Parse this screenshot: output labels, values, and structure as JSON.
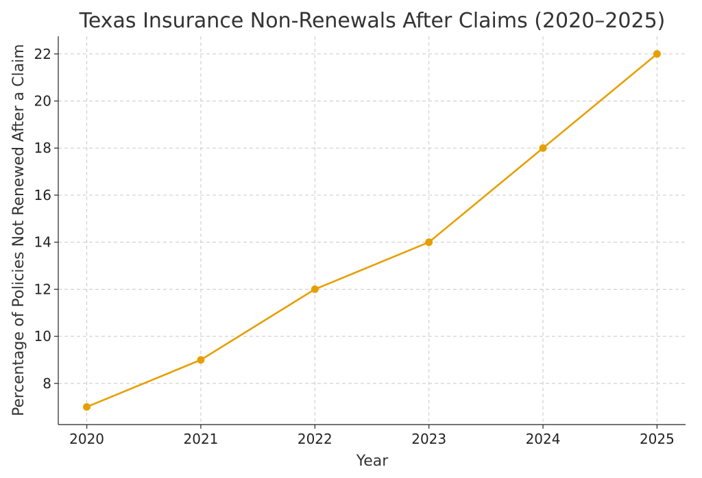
{
  "chart_data": {
    "type": "line",
    "title": "Texas Insurance Non-Renewals After Claims (2020–2025)",
    "xlabel": "Year",
    "ylabel": "Percentage of Policies Not Renewed After a Claim",
    "x": [
      2020,
      2021,
      2022,
      2023,
      2024,
      2025
    ],
    "x_tick_labels": [
      "2020",
      "2021",
      "2022",
      "2023",
      "2024",
      "2025"
    ],
    "y_ticks": [
      8,
      10,
      12,
      14,
      16,
      18,
      20,
      22
    ],
    "series": [
      {
        "values": [
          7,
          9,
          12,
          14,
          18,
          22
        ],
        "color": "#E69F00"
      }
    ],
    "xlim": [
      2019.75,
      2025.25
    ],
    "ylim": [
      6.25,
      22.75
    ],
    "grid": true,
    "marker": "circle"
  }
}
